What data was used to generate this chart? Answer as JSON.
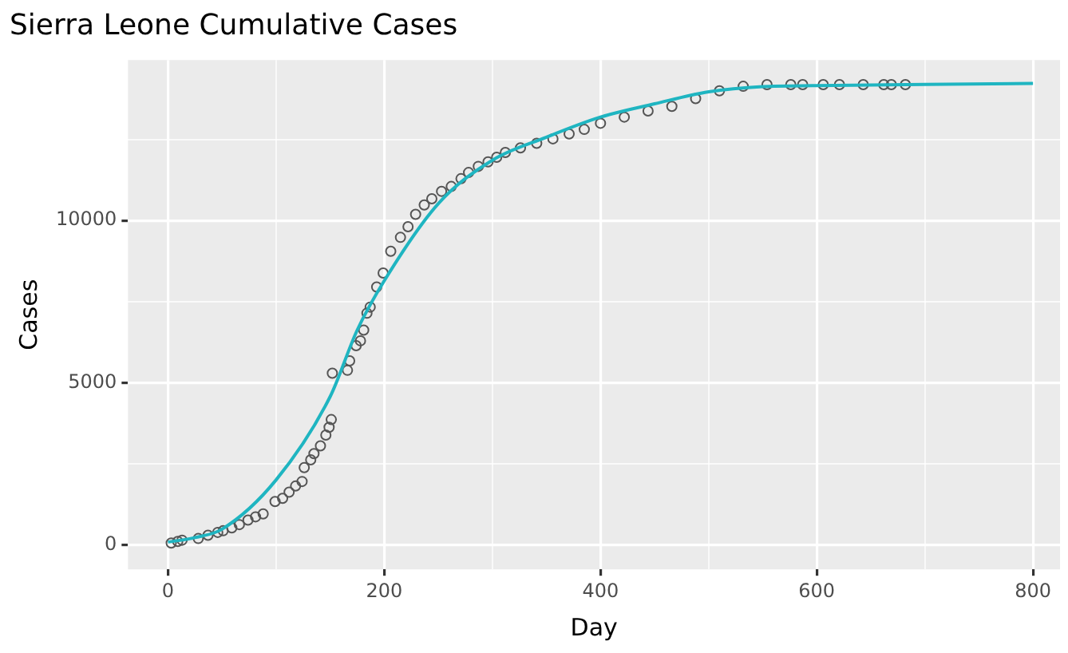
{
  "chart_data": {
    "type": "scatter",
    "title": "Sierra Leone Cumulative Cases",
    "xlabel": "Day",
    "ylabel": "Cases",
    "xlim": [
      -37,
      825
    ],
    "ylim": [
      -760,
      14950
    ],
    "xticks": [
      0,
      {
        "value": 100,
        "label": null
      },
      200,
      {
        "value": 300,
        "label": null
      },
      400,
      {
        "value": 500,
        "label": null
      },
      600,
      {
        "value": 700,
        "label": null
      },
      800
    ],
    "yticks": [
      0,
      {
        "value": 2500,
        "label": null
      },
      5000,
      {
        "value": 7500,
        "label": null
      },
      10000,
      {
        "value": 12500,
        "label": null
      }
    ],
    "grid": true,
    "legend": false,
    "series": [
      {
        "marker": "circle",
        "color": "#555555",
        "x": [
          3,
          9,
          13,
          28,
          37,
          46,
          51,
          59,
          66,
          74,
          81,
          88,
          99,
          106,
          112,
          118,
          124,
          126,
          132,
          135,
          141,
          146,
          149,
          151,
          152,
          166,
          168,
          174,
          178,
          181,
          184,
          187,
          193,
          199,
          206,
          215,
          222,
          229,
          237,
          244,
          253,
          262,
          271,
          278,
          287,
          296,
          304,
          312,
          326,
          341,
          356,
          371,
          385,
          400,
          422,
          444,
          466,
          488,
          510,
          532,
          554,
          576,
          587,
          606,
          621,
          643,
          662,
          669,
          682
        ],
        "values": [
          50,
          100,
          140,
          190,
          290,
          380,
          430,
          520,
          620,
          760,
          860,
          950,
          1330,
          1430,
          1620,
          1810,
          1950,
          2380,
          2620,
          2810,
          3050,
          3380,
          3620,
          3860,
          5290,
          5380,
          5670,
          6140,
          6290,
          6620,
          7140,
          7330,
          7950,
          8380,
          9050,
          9480,
          9810,
          10190,
          10480,
          10670,
          10900,
          11050,
          11290,
          11480,
          11670,
          11810,
          11950,
          12100,
          12240,
          12380,
          12520,
          12670,
          12810,
          13000,
          13190,
          13380,
          13520,
          13760,
          14000,
          14140,
          14190,
          14190,
          14190,
          14190,
          14190,
          14190,
          14190,
          14190,
          14190
        ]
      },
      {
        "type": "line",
        "marker": "none",
        "color": "#1fb5c1",
        "x": [
          0,
          25,
          50,
          100,
          150,
          175,
          200,
          250,
          300,
          350,
          400,
          450,
          500,
          550,
          600,
          700,
          800
        ],
        "values": [
          80,
          220,
          480,
          2000,
          4570,
          6620,
          8140,
          10520,
          11860,
          12570,
          13190,
          13600,
          13970,
          14130,
          14160,
          14200,
          14230
        ]
      }
    ]
  }
}
